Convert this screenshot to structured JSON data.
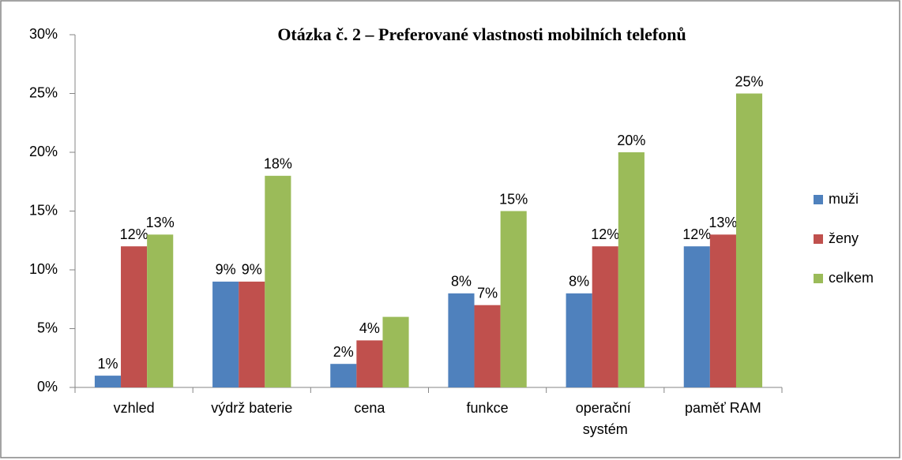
{
  "chart_data": {
    "type": "bar",
    "title": "Otázka č. 2 – Preferované vlastnosti mobilních telefonů",
    "categories": [
      "vzhled",
      "výdrž baterie",
      "cena",
      "funkce",
      "operační systém",
      "paměť RAM"
    ],
    "series": [
      {
        "name": "muži",
        "color": "#4f81bd",
        "values": [
          1,
          9,
          2,
          8,
          8,
          12
        ],
        "value_labels": [
          "1%",
          "9%",
          "2%",
          "8%",
          "8%",
          "12%"
        ]
      },
      {
        "name": "ženy",
        "color": "#c0504d",
        "values": [
          12,
          9,
          4,
          7,
          12,
          13
        ],
        "value_labels": [
          "12%",
          "9%",
          "4%",
          "7%",
          "12%",
          "13%"
        ]
      },
      {
        "name": "celkem",
        "color": "#9bbb59",
        "values": [
          13,
          18,
          6,
          15,
          20,
          25
        ],
        "value_labels": [
          "13%",
          "18%",
          null,
          "15%",
          "20%",
          "25%"
        ]
      }
    ],
    "ylim": [
      0,
      30
    ],
    "yticks": [
      {
        "value": 0,
        "label": "0%"
      },
      {
        "value": 5,
        "label": "5%"
      },
      {
        "value": 10,
        "label": "10%"
      },
      {
        "value": 15,
        "label": "15%"
      },
      {
        "value": 20,
        "label": "20%"
      },
      {
        "value": 25,
        "label": "25%"
      },
      {
        "value": 30,
        "label": "30%"
      }
    ],
    "legend": "right"
  }
}
